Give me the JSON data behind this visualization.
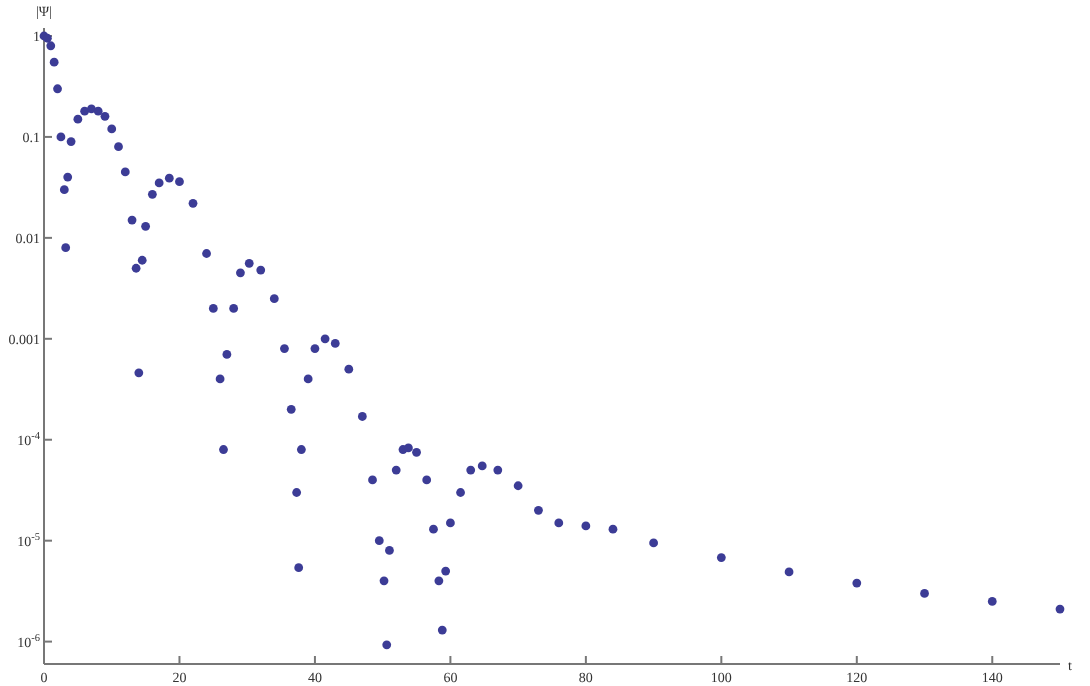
{
  "chart_data": {
    "type": "scatter",
    "xlabel": "t",
    "ylabel": "|Ψ|",
    "log": "y",
    "marker": "circle",
    "grid": false,
    "xlim": [
      0,
      150
    ],
    "ylim": [
      6e-07,
      1.2
    ],
    "xticks": [
      0,
      20,
      40,
      60,
      80,
      100,
      120,
      140
    ],
    "yticks": [
      1,
      0.1,
      0.01,
      0.001,
      {
        "value": 0.0001,
        "label": "10$^{-4}$"
      },
      {
        "value": 1e-05,
        "label": "10$^{-5}$"
      },
      {
        "value": 1e-06,
        "label": "10$^{-6}$"
      }
    ],
    "series": [
      {
        "color": "#3c3c96",
        "x": [
          0,
          0.5,
          1,
          1.5,
          2,
          2.5,
          3,
          3.2,
          3.5,
          4,
          5,
          6,
          7,
          8,
          9,
          10,
          11,
          12,
          13,
          13.6,
          14,
          14.5,
          15,
          16,
          17,
          18.5,
          20,
          22,
          24,
          25,
          26,
          26.5,
          27,
          28,
          29,
          30.3,
          32,
          34,
          35.5,
          36.5,
          37.3,
          37.6,
          38,
          39,
          40,
          41.5,
          43,
          45,
          47,
          48.5,
          49.5,
          50.2,
          50.6,
          51,
          52,
          53,
          53.8,
          55,
          56.5,
          57.5,
          58.3,
          58.8,
          59.3,
          60,
          61.5,
          63,
          64.7,
          67,
          70,
          73,
          76,
          80,
          84,
          90,
          100,
          110,
          120,
          130,
          140,
          150
        ],
        "values": [
          1,
          0.95,
          0.8,
          0.55,
          0.3,
          0.1,
          0.03,
          0.008,
          0.04,
          0.09,
          0.15,
          0.18,
          0.19,
          0.18,
          0.16,
          0.12,
          0.08,
          0.045,
          0.015,
          0.005,
          0.00046,
          0.006,
          0.013,
          0.027,
          0.035,
          0.039,
          0.036,
          0.022,
          0.007,
          0.002,
          0.0004,
          8e-05,
          0.0007,
          0.002,
          0.0045,
          0.0056,
          0.0048,
          0.0025,
          0.0008,
          0.0002,
          3e-05,
          5.4e-06,
          8e-05,
          0.0004,
          0.0008,
          0.001,
          0.0009,
          0.0005,
          0.00017,
          4e-05,
          1e-05,
          4e-06,
          9.3e-07,
          8e-06,
          5e-05,
          8e-05,
          8.3e-05,
          7.5e-05,
          4e-05,
          1.3e-05,
          4e-06,
          1.3e-06,
          5e-06,
          1.5e-05,
          3e-05,
          5e-05,
          5.5e-05,
          5e-05,
          3.5e-05,
          2e-05,
          1.5e-05,
          1.4e-05,
          1.3e-05,
          9.5e-06,
          6.8e-06,
          4.9e-06,
          3.8e-06,
          3e-06,
          2.5e-06,
          2.1e-06
        ]
      }
    ]
  }
}
